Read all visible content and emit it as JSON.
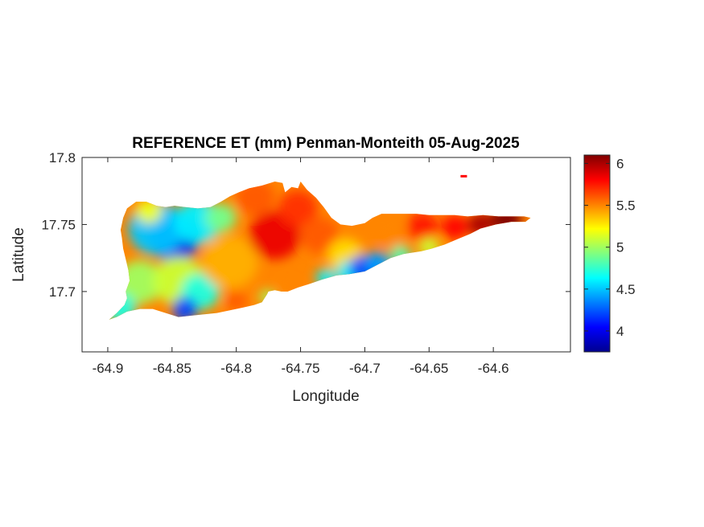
{
  "chart_data": {
    "type": "heatmap",
    "title": "REFERENCE ET (mm) Penman-Monteith 05-Aug-2025",
    "xlabel": "Longitude",
    "ylabel": "Latitude",
    "xlim": [
      -64.92,
      -64.54
    ],
    "ylim": [
      17.655,
      17.8
    ],
    "xticks": [
      -64.9,
      -64.85,
      -64.8,
      -64.75,
      -64.7,
      -64.65,
      -64.6
    ],
    "xtick_labels": [
      "-64.9",
      "-64.85",
      "-64.8",
      "-64.75",
      "-64.7",
      "-64.65",
      "-64.6"
    ],
    "yticks": [
      17.7,
      17.75,
      17.8
    ],
    "ytick_labels": [
      "17.7",
      "17.75",
      "17.8"
    ],
    "colorbar": {
      "colormap": "jet",
      "range": [
        3.75,
        6.1
      ],
      "ticks": [
        4,
        4.5,
        5,
        5.5,
        6
      ],
      "tick_labels": [
        "4",
        "4.5",
        "5",
        "5.5",
        "6"
      ]
    },
    "grid": false,
    "outline": [
      [
        -64.899,
        17.679
      ],
      [
        -64.893,
        17.684
      ],
      [
        -64.887,
        17.69
      ],
      [
        -64.885,
        17.695
      ],
      [
        -64.886,
        17.7
      ],
      [
        -64.883,
        17.708
      ],
      [
        -64.884,
        17.716
      ],
      [
        -64.886,
        17.724
      ],
      [
        -64.888,
        17.732
      ],
      [
        -64.889,
        17.74
      ],
      [
        -64.89,
        17.746
      ],
      [
        -64.888,
        17.755
      ],
      [
        -64.885,
        17.762
      ],
      [
        -64.878,
        17.767
      ],
      [
        -64.87,
        17.767
      ],
      [
        -64.862,
        17.764
      ],
      [
        -64.855,
        17.763
      ],
      [
        -64.848,
        17.764
      ],
      [
        -64.84,
        17.763
      ],
      [
        -64.83,
        17.762
      ],
      [
        -64.82,
        17.763
      ],
      [
        -64.812,
        17.767
      ],
      [
        -64.805,
        17.771
      ],
      [
        -64.798,
        17.774
      ],
      [
        -64.79,
        17.777
      ],
      [
        -64.78,
        17.779
      ],
      [
        -64.77,
        17.782
      ],
      [
        -64.764,
        17.781
      ],
      [
        -64.762,
        17.774
      ],
      [
        -64.757,
        17.778
      ],
      [
        -64.752,
        17.777
      ],
      [
        -64.75,
        17.782
      ],
      [
        -64.745,
        17.776
      ],
      [
        -64.738,
        17.77
      ],
      [
        -64.732,
        17.763
      ],
      [
        -64.726,
        17.755
      ],
      [
        -64.719,
        17.75
      ],
      [
        -64.71,
        17.749
      ],
      [
        -64.7,
        17.751
      ],
      [
        -64.694,
        17.755
      ],
      [
        -64.687,
        17.758
      ],
      [
        -64.68,
        17.758
      ],
      [
        -64.67,
        17.758
      ],
      [
        -64.66,
        17.758
      ],
      [
        -64.65,
        17.757
      ],
      [
        -64.64,
        17.757
      ],
      [
        -64.63,
        17.757
      ],
      [
        -64.62,
        17.756
      ],
      [
        -64.608,
        17.757
      ],
      [
        -64.596,
        17.756
      ],
      [
        -64.585,
        17.756
      ],
      [
        -64.576,
        17.756
      ],
      [
        -64.571,
        17.755
      ],
      [
        -64.575,
        17.752
      ],
      [
        -64.586,
        17.752
      ],
      [
        -64.598,
        17.75
      ],
      [
        -64.61,
        17.747
      ],
      [
        -64.618,
        17.743
      ],
      [
        -64.628,
        17.739
      ],
      [
        -64.638,
        17.735
      ],
      [
        -64.648,
        17.732
      ],
      [
        -64.656,
        17.73
      ],
      [
        -64.663,
        17.729
      ],
      [
        -64.67,
        17.728
      ],
      [
        -64.68,
        17.725
      ],
      [
        -64.69,
        17.72
      ],
      [
        -64.7,
        17.715
      ],
      [
        -64.712,
        17.713
      ],
      [
        -64.722,
        17.712
      ],
      [
        -64.733,
        17.709
      ],
      [
        -64.742,
        17.706
      ],
      [
        -64.752,
        17.703
      ],
      [
        -64.76,
        17.7
      ],
      [
        -64.765,
        17.7
      ],
      [
        -64.77,
        17.701
      ],
      [
        -64.775,
        17.7
      ],
      [
        -64.776,
        17.698
      ],
      [
        -64.78,
        17.692
      ],
      [
        -64.786,
        17.69
      ],
      [
        -64.795,
        17.688
      ],
      [
        -64.805,
        17.686
      ],
      [
        -64.815,
        17.684
      ],
      [
        -64.825,
        17.683
      ],
      [
        -64.835,
        17.682
      ],
      [
        -64.845,
        17.681
      ],
      [
        -64.855,
        17.684
      ],
      [
        -64.865,
        17.687
      ],
      [
        -64.875,
        17.687
      ],
      [
        -64.885,
        17.685
      ],
      [
        -64.893,
        17.681
      ]
    ],
    "field": [
      {
        "lon": -64.848,
        "lat": 17.74,
        "r": 0.02,
        "value": 4.0
      },
      {
        "lon": -64.862,
        "lat": 17.747,
        "r": 0.022,
        "value": 4.5
      },
      {
        "lon": -64.83,
        "lat": 17.752,
        "r": 0.018,
        "value": 4.6
      },
      {
        "lon": -64.812,
        "lat": 17.755,
        "r": 0.012,
        "value": 4.9
      },
      {
        "lon": -64.875,
        "lat": 17.707,
        "r": 0.018,
        "value": 5.0
      },
      {
        "lon": -64.89,
        "lat": 17.688,
        "r": 0.012,
        "value": 4.7
      },
      {
        "lon": -64.845,
        "lat": 17.708,
        "r": 0.02,
        "value": 5.1
      },
      {
        "lon": -64.868,
        "lat": 17.76,
        "r": 0.01,
        "value": 5.2
      },
      {
        "lon": -64.828,
        "lat": 17.7,
        "r": 0.015,
        "value": 4.7
      },
      {
        "lon": -64.84,
        "lat": 17.687,
        "r": 0.01,
        "value": 4.2
      },
      {
        "lon": -64.805,
        "lat": 17.722,
        "r": 0.022,
        "value": 5.4
      },
      {
        "lon": -64.77,
        "lat": 17.742,
        "r": 0.02,
        "value": 5.85
      },
      {
        "lon": -64.752,
        "lat": 17.762,
        "r": 0.015,
        "value": 5.7
      },
      {
        "lon": -64.785,
        "lat": 17.77,
        "r": 0.015,
        "value": 5.6
      },
      {
        "lon": -64.735,
        "lat": 17.742,
        "r": 0.015,
        "value": 5.6
      },
      {
        "lon": -64.715,
        "lat": 17.727,
        "r": 0.014,
        "value": 5.3
      },
      {
        "lon": -64.712,
        "lat": 17.714,
        "r": 0.01,
        "value": 4.6
      },
      {
        "lon": -64.7,
        "lat": 17.717,
        "r": 0.012,
        "value": 4.2
      },
      {
        "lon": -64.69,
        "lat": 17.721,
        "r": 0.01,
        "value": 4.4
      },
      {
        "lon": -64.73,
        "lat": 17.71,
        "r": 0.008,
        "value": 4.6
      },
      {
        "lon": -64.672,
        "lat": 17.727,
        "r": 0.008,
        "value": 4.8
      },
      {
        "lon": -64.68,
        "lat": 17.744,
        "r": 0.012,
        "value": 5.5
      },
      {
        "lon": -64.655,
        "lat": 17.748,
        "r": 0.012,
        "value": 5.75
      },
      {
        "lon": -64.65,
        "lat": 17.733,
        "r": 0.008,
        "value": 5.1
      },
      {
        "lon": -64.63,
        "lat": 17.748,
        "r": 0.01,
        "value": 5.8
      },
      {
        "lon": -64.61,
        "lat": 17.75,
        "r": 0.01,
        "value": 6.0
      },
      {
        "lon": -64.59,
        "lat": 17.754,
        "r": 0.012,
        "value": 6.1
      },
      {
        "lon": -64.76,
        "lat": 17.703,
        "r": 0.006,
        "value": 5.5
      },
      {
        "lon": -64.8,
        "lat": 17.693,
        "r": 0.008,
        "value": 5.6
      },
      {
        "lon": -64.776,
        "lat": 17.696,
        "r": 0.006,
        "value": 5.0
      }
    ],
    "background_value": 5.5,
    "islet": {
      "lon": -64.623,
      "lat": 17.786,
      "value": 5.8
    }
  }
}
